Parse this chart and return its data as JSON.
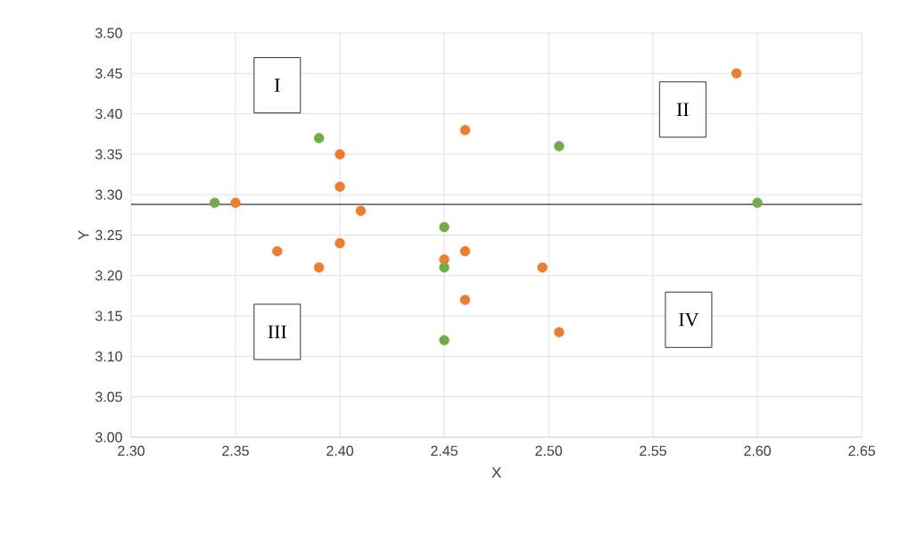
{
  "chart_data": {
    "type": "scatter",
    "xlabel": "X",
    "ylabel": "Y",
    "series": [
      {
        "color": "#ed7d31",
        "x": [
          2.35,
          2.37,
          2.39,
          2.4,
          2.4,
          2.4,
          2.41,
          2.45,
          2.46,
          2.46,
          2.46,
          2.497,
          2.505,
          2.59
        ],
        "values": [
          3.29,
          3.23,
          3.21,
          3.24,
          3.31,
          3.35,
          3.28,
          3.22,
          3.38,
          3.23,
          3.17,
          3.21,
          3.13,
          3.45
        ]
      },
      {
        "color": "#70ad47",
        "x": [
          2.34,
          2.39,
          2.45,
          2.45,
          2.45,
          2.505,
          2.6
        ],
        "values": [
          3.29,
          3.37,
          3.26,
          3.21,
          3.12,
          3.36,
          3.29
        ]
      }
    ],
    "marker": "circle",
    "grid": true,
    "xlim": [
      2.3,
      2.65
    ],
    "ylim": [
      3.0,
      3.5
    ],
    "xticks": [
      {
        "value": 2.3,
        "label": "2.30"
      },
      {
        "value": 2.35,
        "label": "2.35"
      },
      {
        "value": 2.4,
        "label": "2.40"
      },
      {
        "value": 2.45,
        "label": "2.45"
      },
      {
        "value": 2.5,
        "label": "2.50"
      },
      {
        "value": 2.55,
        "label": "2.55"
      },
      {
        "value": 2.6,
        "label": "2.60"
      },
      {
        "value": 2.65,
        "label": "2.65"
      }
    ],
    "yticks": [
      {
        "value": 3.0,
        "label": "3.00"
      },
      {
        "value": 3.05,
        "label": "3.05"
      },
      {
        "value": 3.1,
        "label": "3.10"
      },
      {
        "value": 3.15,
        "label": "3.15"
      },
      {
        "value": 3.2,
        "label": "3.20"
      },
      {
        "value": 3.25,
        "label": "3.25"
      },
      {
        "value": 3.3,
        "label": "3.30"
      },
      {
        "value": 3.35,
        "label": "3.35"
      },
      {
        "value": 3.4,
        "label": "3.40"
      },
      {
        "value": 3.45,
        "label": "3.45"
      },
      {
        "value": 3.5,
        "label": "3.50"
      }
    ],
    "ref_lines": [
      {
        "axis": "y",
        "value": 3.288,
        "color": "#000000"
      }
    ],
    "annotations": [
      "I",
      "II",
      "III",
      "IV"
    ]
  }
}
